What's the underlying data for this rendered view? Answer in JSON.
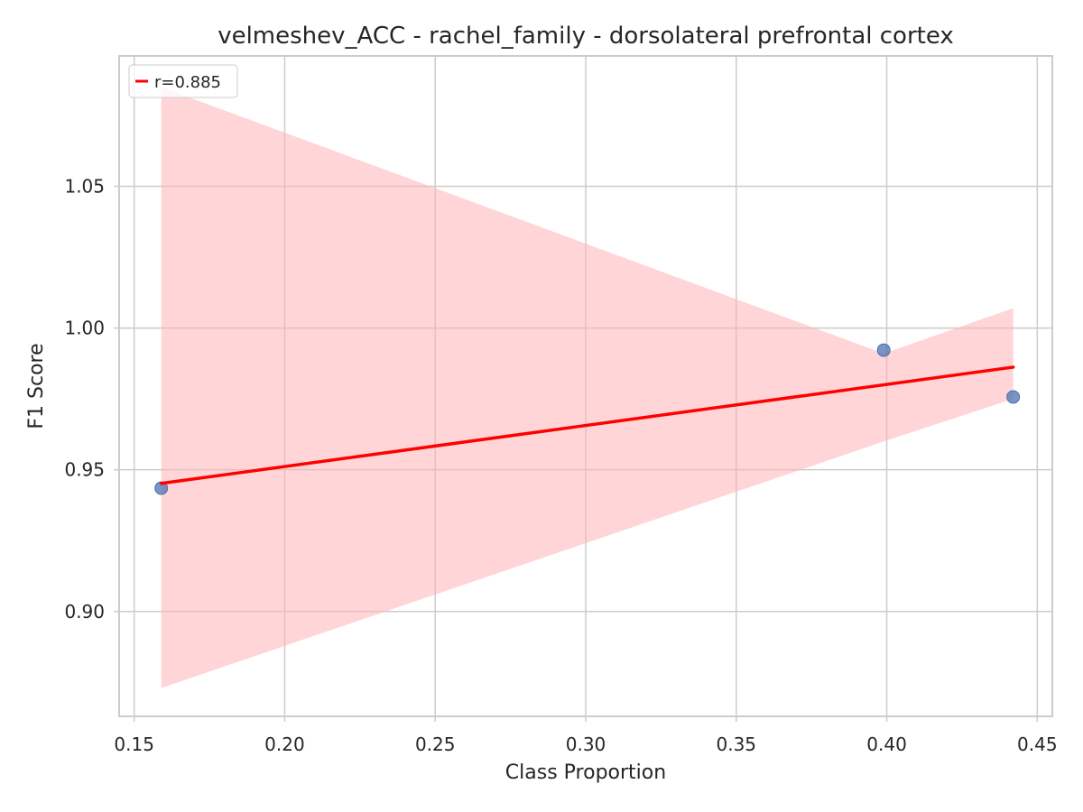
{
  "chart_data": {
    "type": "scatter",
    "title": "velmeshev_ACC - rachel_family - dorsolateral prefrontal cortex",
    "xlabel": "Class Proportion",
    "ylabel": "F1 Score",
    "xlim": [
      0.145,
      0.455
    ],
    "ylim": [
      0.863,
      1.096
    ],
    "xticks": [
      0.15,
      0.2,
      0.25,
      0.3,
      0.35,
      0.4,
      0.45
    ],
    "xtick_labels": [
      "0.15",
      "0.20",
      "0.25",
      "0.30",
      "0.35",
      "0.40",
      "0.45"
    ],
    "yticks": [
      0.9,
      0.95,
      1.0,
      1.05
    ],
    "ytick_labels": [
      "0.90",
      "0.95",
      "1.00",
      "1.05"
    ],
    "grid": true,
    "legend_position": "top-left",
    "points": {
      "color": "#4c72b0",
      "x": [
        0.159,
        0.399,
        0.442
      ],
      "y": [
        0.9435,
        0.9922,
        0.9757
      ]
    },
    "regression": {
      "name": "r=0.885",
      "color": "#ff0000",
      "x": [
        0.159,
        0.442
      ],
      "y": [
        0.9452,
        0.9862
      ],
      "ci_color": "#ffb3b6",
      "ci_x": [
        0.159,
        0.399,
        0.442
      ],
      "ci_upper": [
        1.085,
        0.991,
        1.007
      ],
      "ci_lower": [
        0.873,
        0.96,
        0.975
      ]
    }
  }
}
